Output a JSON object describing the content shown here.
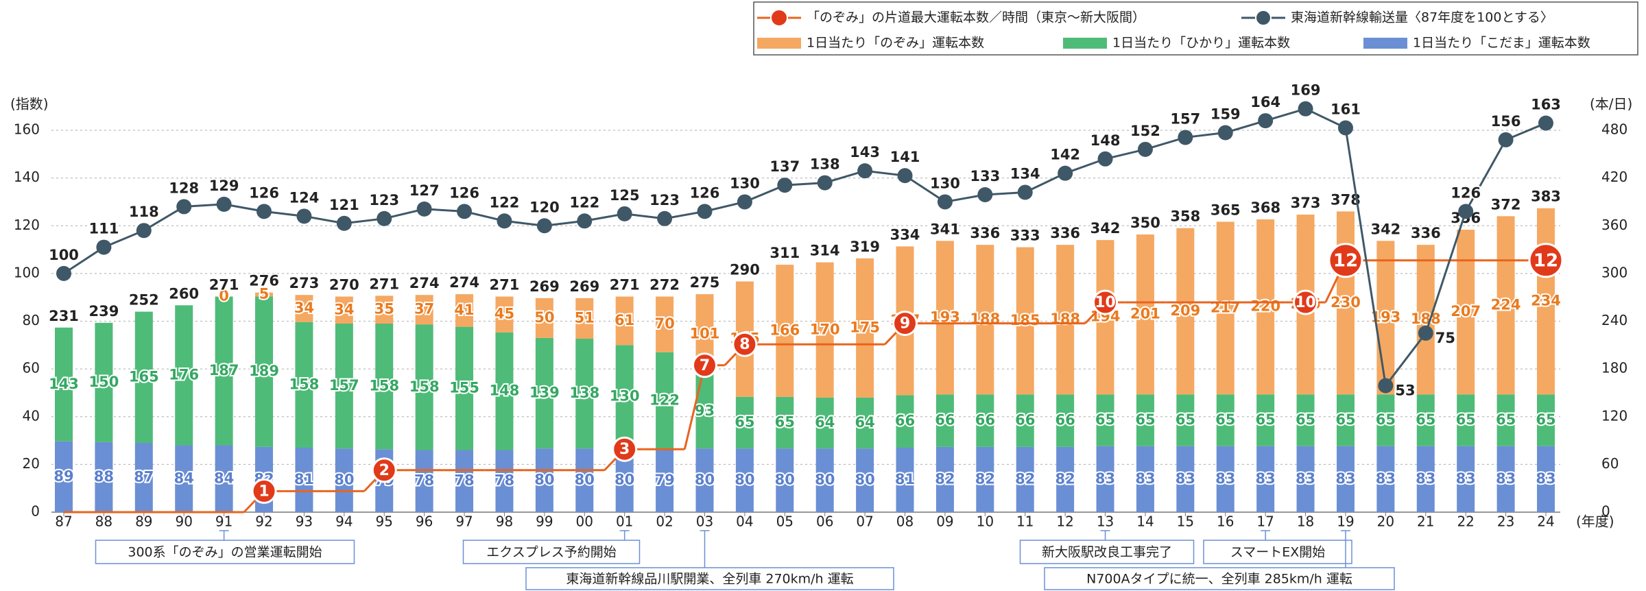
{
  "chart_data": {
    "type": "bar",
    "categories": [
      "87",
      "88",
      "89",
      "90",
      "91",
      "92",
      "93",
      "94",
      "95",
      "96",
      "97",
      "98",
      "99",
      "00",
      "01",
      "02",
      "03",
      "04",
      "05",
      "06",
      "07",
      "08",
      "09",
      "10",
      "11",
      "12",
      "13",
      "14",
      "15",
      "16",
      "17",
      "18",
      "19",
      "20",
      "21",
      "22",
      "23",
      "24"
    ],
    "x_label": "(年度)",
    "y_label": "(指数)",
    "y2_label": "(本/日)",
    "ylim": [
      0,
      160
    ],
    "yticks": [
      0,
      20,
      40,
      60,
      80,
      100,
      120,
      140,
      160
    ],
    "y2lim": [
      0,
      480
    ],
    "y2ticks": [
      0,
      60,
      120,
      180,
      240,
      300,
      360,
      420,
      480
    ],
    "grid": true,
    "series": [
      {
        "name": "1日当たり「こだま」運転本数",
        "type": "bar",
        "axis": "y2",
        "color": "#6b8fd4",
        "label_color": "#5a7fcc",
        "values": [
          89,
          88,
          87,
          84,
          84,
          82,
          81,
          80,
          79,
          78,
          78,
          78,
          80,
          80,
          80,
          79,
          80,
          80,
          80,
          80,
          80,
          81,
          82,
          82,
          82,
          82,
          83,
          83,
          83,
          83,
          83,
          83,
          83,
          83,
          83,
          83,
          83,
          83
        ]
      },
      {
        "name": "1日当たり「ひかり」運転本数",
        "type": "bar",
        "axis": "y2",
        "color": "#4fbb78",
        "label_color": "#35a763",
        "values": [
          143,
          150,
          165,
          176,
          187,
          189,
          158,
          157,
          158,
          158,
          155,
          148,
          139,
          138,
          130,
          122,
          93,
          65,
          65,
          64,
          64,
          66,
          66,
          66,
          66,
          66,
          65,
          65,
          65,
          65,
          65,
          65,
          65,
          65,
          65,
          65,
          65,
          65
        ]
      },
      {
        "name": "1日当たり「のぞみ」運転本数",
        "type": "bar",
        "axis": "y2",
        "color": "#f5a862",
        "label_color": "#ea7a1e",
        "values": [
          null,
          null,
          null,
          null,
          0,
          5,
          34,
          34,
          35,
          37,
          41,
          45,
          50,
          51,
          61,
          70,
          101,
          145,
          166,
          170,
          175,
          187,
          193,
          188,
          185,
          188,
          194,
          201,
          209,
          217,
          220,
          226,
          230,
          193,
          188,
          207,
          224,
          234
        ]
      },
      {
        "name": "東海道新幹線輸送量〈87年度を100とする〉",
        "type": "line",
        "axis": "y",
        "color": "#3f5868",
        "values": [
          100,
          111,
          118,
          128,
          129,
          126,
          124,
          121,
          123,
          127,
          126,
          122,
          120,
          122,
          125,
          123,
          126,
          130,
          137,
          138,
          143,
          141,
          130,
          133,
          134,
          142,
          148,
          152,
          157,
          159,
          164,
          169,
          161,
          53,
          75,
          126,
          156,
          163
        ]
      },
      {
        "name": "「のぞみ」の片道最大運転本数／時間（東京〜新大阪間）",
        "type": "step",
        "color": "#e8641e",
        "marker_color": "#e13a1a",
        "values": [
          0,
          0,
          0,
          0,
          0,
          1,
          1,
          1,
          2,
          2,
          2,
          2,
          2,
          2,
          3,
          3,
          7,
          8,
          8,
          8,
          8,
          9,
          9,
          9,
          9,
          9,
          10,
          10,
          10,
          10,
          10,
          10,
          12,
          12,
          12,
          12,
          12,
          12
        ],
        "value_labels": [
          null,
          null,
          null,
          null,
          null,
          "1",
          null,
          null,
          "2",
          null,
          null,
          null,
          null,
          null,
          "3",
          null,
          "7",
          "8",
          null,
          null,
          null,
          "9",
          null,
          null,
          null,
          null,
          "10",
          null,
          null,
          null,
          null,
          "10",
          "12",
          null,
          null,
          null,
          null,
          "12"
        ]
      }
    ],
    "totals": [
      231,
      239,
      252,
      260,
      271,
      276,
      273,
      270,
      271,
      274,
      274,
      271,
      269,
      269,
      271,
      272,
      275,
      290,
      311,
      314,
      319,
      334,
      341,
      336,
      333,
      336,
      342,
      350,
      358,
      365,
      368,
      373,
      378,
      342,
      336,
      356,
      372,
      383
    ],
    "annotations": [
      "300系「のぞみ」の営業運転開始",
      "エクスプレス予約開始",
      "東海道新幹線品川駅開業、全列車 270km/h 運転",
      "新大阪駅改良工事完了",
      "スマートEX開始",
      "N700Aタイプに統一、全列車 285km/h 運転"
    ]
  }
}
